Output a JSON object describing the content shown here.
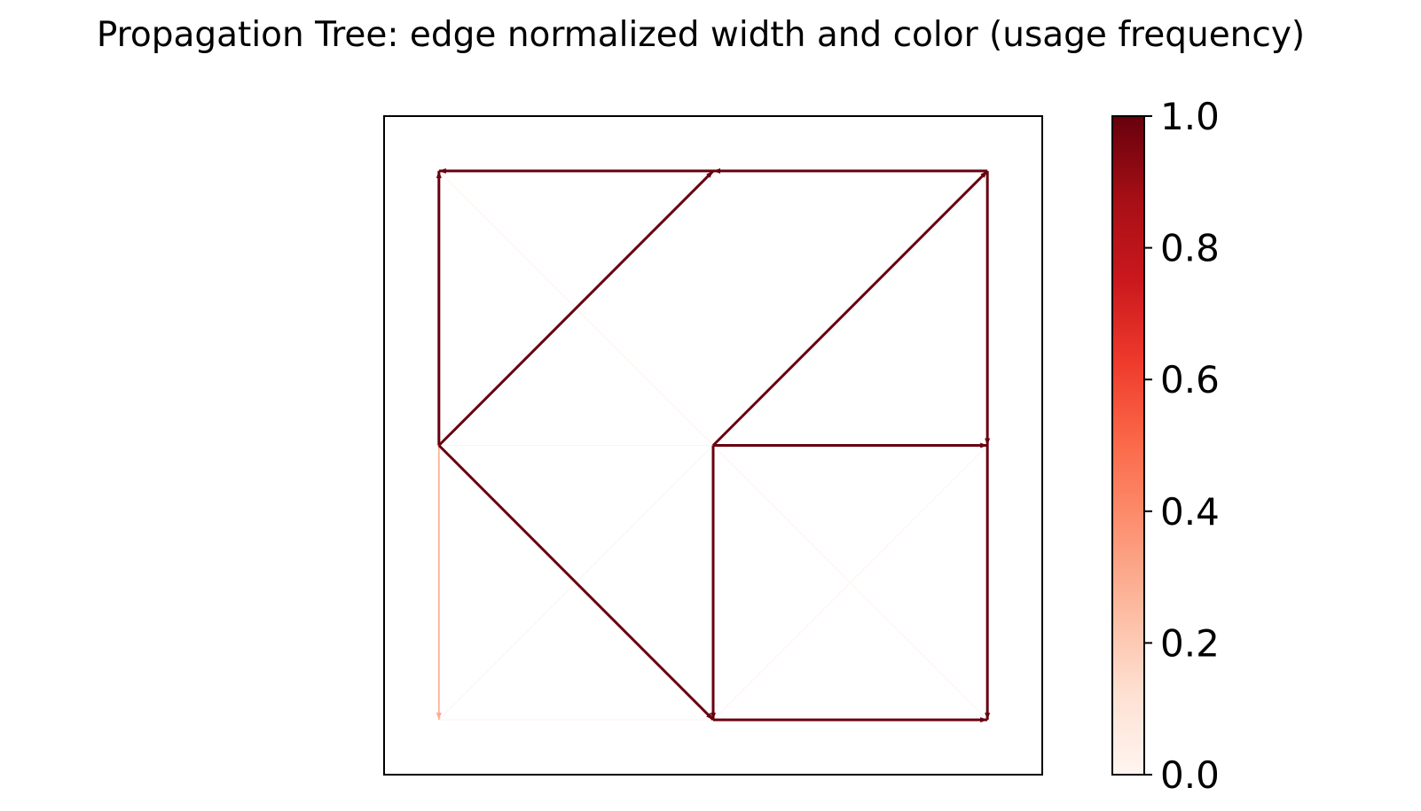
{
  "chart_data": {
    "type": "network",
    "title": "Propagation Tree: edge normalized width and color (usage frequency)",
    "colormap": "Reds",
    "colormap_stops": [
      "#fff5f0",
      "#fee0d2",
      "#fcbba1",
      "#fc9272",
      "#fb6a4a",
      "#ef3b2c",
      "#cb181d",
      "#a50f15",
      "#67000d"
    ],
    "colorbar": {
      "min": 0.0,
      "max": 1.0,
      "ticks": [
        0.0,
        0.2,
        0.4,
        0.6,
        0.8,
        1.0
      ],
      "tick_labels": [
        "0.0",
        "0.2",
        "0.4",
        "0.6",
        "0.8",
        "1.0"
      ]
    },
    "xlim": [
      -0.2,
      2.2
    ],
    "ylim": [
      -0.2,
      2.2
    ],
    "axes_visible": false,
    "grid": false,
    "nodes": [
      {
        "id": "n00",
        "x": 0,
        "y": 0
      },
      {
        "id": "n10",
        "x": 1,
        "y": 0
      },
      {
        "id": "n20",
        "x": 2,
        "y": 0
      },
      {
        "id": "n01",
        "x": 0,
        "y": 1
      },
      {
        "id": "n11",
        "x": 1,
        "y": 1
      },
      {
        "id": "n21",
        "x": 2,
        "y": 1
      },
      {
        "id": "n02",
        "x": 0,
        "y": 2
      },
      {
        "id": "n12",
        "x": 1,
        "y": 2
      },
      {
        "id": "n22",
        "x": 2,
        "y": 2
      }
    ],
    "edges": [
      {
        "from": "n01",
        "to": "n02",
        "value": 1.0
      },
      {
        "from": "n12",
        "to": "n02",
        "value": 1.0
      },
      {
        "from": "n01",
        "to": "n12",
        "value": 1.0
      },
      {
        "from": "n22",
        "to": "n12",
        "value": 1.0
      },
      {
        "from": "n11",
        "to": "n22",
        "value": 1.0
      },
      {
        "from": "n22",
        "to": "n21",
        "value": 1.0
      },
      {
        "from": "n11",
        "to": "n21",
        "value": 1.0
      },
      {
        "from": "n01",
        "to": "n10",
        "value": 1.0
      },
      {
        "from": "n11",
        "to": "n10",
        "value": 1.0
      },
      {
        "from": "n21",
        "to": "n20",
        "value": 1.0
      },
      {
        "from": "n10",
        "to": "n20",
        "value": 1.0
      },
      {
        "from": "n01",
        "to": "n00",
        "value": 0.3
      },
      {
        "from": "n01",
        "to": "n11",
        "value": 0.02
      },
      {
        "from": "n00",
        "to": "n10",
        "value": 0.02
      },
      {
        "from": "n02",
        "to": "n11",
        "value": 0.01
      },
      {
        "from": "n00",
        "to": "n11",
        "value": 0.01
      },
      {
        "from": "n11",
        "to": "n20",
        "value": 0.01
      },
      {
        "from": "n10",
        "to": "n21",
        "value": 0.01
      }
    ]
  }
}
